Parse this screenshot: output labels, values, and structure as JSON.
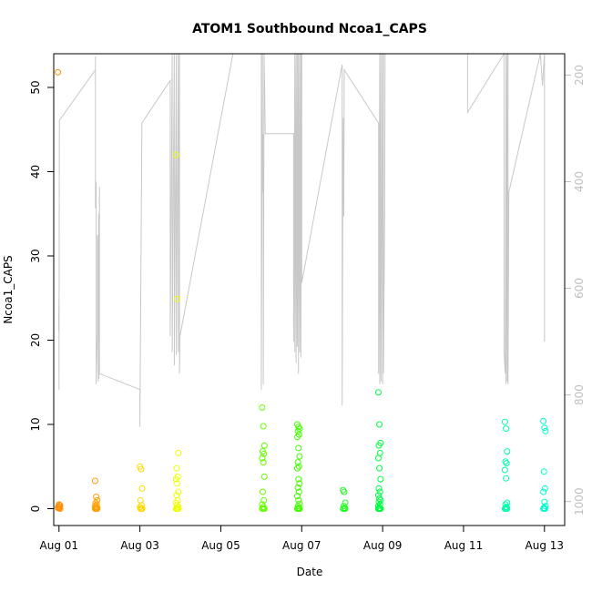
{
  "chart_data": {
    "type": "scatter",
    "title": "ATOM1 Southbound Ncoa1_CAPS",
    "xlabel": "Date",
    "ylabel": "Ncoa1_CAPS",
    "x_ticks": [
      {
        "day": 1,
        "label": "Aug 01"
      },
      {
        "day": 3,
        "label": "Aug 03"
      },
      {
        "day": 5,
        "label": "Aug 05"
      },
      {
        "day": 7,
        "label": "Aug 07"
      },
      {
        "day": 9,
        "label": "Aug 09"
      },
      {
        "day": 11,
        "label": "Aug 11"
      },
      {
        "day": 13,
        "label": "Aug 13"
      }
    ],
    "xlim": [
      0.87,
      13.5
    ],
    "ylim": [
      -2.0,
      54.0
    ],
    "y_ticks": [
      0,
      10,
      20,
      30,
      40,
      50
    ],
    "y2_ticks": [
      200,
      400,
      600,
      800,
      1000
    ],
    "y2lim": [
      1045,
      160
    ],
    "y2_color": "#bfbfbf",
    "depth_color": "#c8c8c8",
    "clusters": [
      {
        "day": 1.0,
        "color": "#ff8c00",
        "values": [
          51.8,
          0.5,
          0.4,
          0.3,
          0.2,
          0.1,
          0.05,
          0.0
        ]
      },
      {
        "day": 1.92,
        "color": "#ffa000",
        "values": [
          3.3,
          1.4,
          1.0,
          0.7,
          0.5,
          0.3,
          0.2,
          0.1,
          0.0,
          0.0,
          0.0,
          0.0,
          0.0,
          0.0
        ]
      },
      {
        "day": 3.03,
        "color": "#ffd800",
        "values": [
          5.0,
          4.7,
          2.4,
          1.0,
          0.4,
          0.2,
          0.0,
          0.0,
          0.0,
          0.0
        ]
      },
      {
        "day": 3.92,
        "color": "#eeff00",
        "values": [
          42.0,
          24.9,
          6.6,
          4.8,
          3.8,
          3.5,
          3.0,
          2.0,
          1.6,
          1.0,
          0.7,
          0.4,
          0.2,
          0.0,
          0.0,
          0.0,
          0.0,
          0.0,
          0.0,
          0.0
        ]
      },
      {
        "day": 6.05,
        "color": "#66ff00",
        "values": [
          12.0,
          9.8,
          7.5,
          6.8,
          6.5,
          6.0,
          5.5,
          3.8,
          2.0,
          1.0,
          0.5,
          0.2,
          0.0,
          0.0,
          0.0,
          0.0
        ]
      },
      {
        "day": 6.92,
        "color": "#44ff00",
        "values": [
          10.0,
          9.7,
          9.5,
          9.2,
          8.8,
          8.5,
          7.2,
          6.2,
          5.5,
          5.0,
          4.8,
          3.5,
          3.0,
          2.5,
          2.0,
          1.5,
          1.0,
          0.6,
          0.3,
          0.1,
          0.0,
          0.0,
          0.0,
          0.0,
          0.0,
          0.0,
          0.0,
          0.0
        ]
      },
      {
        "day": 8.05,
        "color": "#22ff22",
        "values": [
          2.2,
          2.0,
          0.7,
          0.3,
          0.1,
          0.0,
          0.0,
          0.0
        ]
      },
      {
        "day": 8.92,
        "color": "#00ff44",
        "values": [
          13.8,
          10.0,
          7.8,
          7.5,
          6.6,
          6.0,
          4.8,
          3.5,
          2.4,
          2.0,
          1.6,
          1.2,
          1.0,
          0.8,
          0.5,
          0.3,
          0.1,
          0.0,
          0.0,
          0.0,
          0.0,
          0.0,
          0.0,
          0.0
        ]
      },
      {
        "day": 12.05,
        "color": "#00ffaa",
        "values": [
          10.3,
          9.5,
          6.8,
          5.6,
          5.4,
          4.6,
          3.6,
          0.7,
          0.5,
          0.2,
          0.0,
          0.0,
          0.0,
          0.0
        ]
      },
      {
        "day": 13.0,
        "color": "#00ffcc",
        "values": [
          10.4,
          9.6,
          9.2,
          4.4,
          2.4,
          2.0,
          0.8,
          0.3,
          0.1,
          0.0,
          0.0,
          0.0
        ]
      }
    ],
    "depth_path": [
      [
        0.99,
        680
      ],
      [
        1.0,
        620
      ],
      [
        1.0,
        790
      ],
      [
        1.01,
        285
      ],
      [
        1.9,
        190
      ],
      [
        1.9,
        165
      ],
      [
        1.9,
        450
      ],
      [
        1.92,
        400
      ],
      [
        1.92,
        780
      ],
      [
        1.95,
        680
      ],
      [
        1.95,
        500
      ],
      [
        1.97,
        540
      ],
      [
        1.97,
        775
      ],
      [
        1.98,
        460
      ],
      [
        1.99,
        770
      ],
      [
        2.0,
        410
      ],
      [
        2.0,
        760
      ],
      [
        3.0,
        790
      ],
      [
        3.0,
        860
      ],
      [
        3.05,
        290
      ],
      [
        3.75,
        210
      ],
      [
        3.75,
        690
      ],
      [
        3.8,
        160
      ],
      [
        3.8,
        720
      ],
      [
        3.85,
        160
      ],
      [
        3.85,
        745
      ],
      [
        3.9,
        160
      ],
      [
        3.9,
        725
      ],
      [
        3.95,
        160
      ],
      [
        3.95,
        720
      ],
      [
        3.98,
        160
      ],
      [
        3.98,
        760
      ],
      [
        3.99,
        690
      ],
      [
        5.3,
        160
      ],
      [
        6.0,
        160
      ],
      [
        6.0,
        790
      ],
      [
        6.03,
        160
      ],
      [
        6.03,
        420
      ],
      [
        6.05,
        310
      ],
      [
        6.05,
        780
      ],
      [
        6.07,
        160
      ],
      [
        6.1,
        310
      ],
      [
        6.8,
        310
      ],
      [
        6.8,
        700
      ],
      [
        6.83,
        160
      ],
      [
        6.83,
        720
      ],
      [
        6.86,
        160
      ],
      [
        6.86,
        740
      ],
      [
        6.89,
        160
      ],
      [
        6.89,
        710
      ],
      [
        6.92,
        160
      ],
      [
        6.92,
        760
      ],
      [
        6.95,
        160
      ],
      [
        6.95,
        720
      ],
      [
        6.98,
        160
      ],
      [
        6.98,
        730
      ],
      [
        7.0,
        160
      ],
      [
        7.0,
        590
      ],
      [
        8.0,
        180
      ],
      [
        8.0,
        820
      ],
      [
        8.02,
        340
      ],
      [
        8.03,
        280
      ],
      [
        8.04,
        465
      ],
      [
        8.05,
        190
      ],
      [
        8.9,
        290
      ],
      [
        8.9,
        760
      ],
      [
        8.93,
        160
      ],
      [
        8.93,
        780
      ],
      [
        8.96,
        160
      ],
      [
        8.96,
        775
      ],
      [
        9.0,
        160
      ],
      [
        9.0,
        780
      ],
      [
        9.02,
        160
      ],
      [
        9.02,
        760
      ],
      [
        9.05,
        480
      ],
      [
        9.06,
        160
      ],
      [
        11.1,
        160
      ],
      [
        11.1,
        270
      ],
      [
        12.0,
        160
      ],
      [
        12.0,
        720
      ],
      [
        12.03,
        760
      ],
      [
        12.05,
        160
      ],
      [
        12.05,
        780
      ],
      [
        12.08,
        160
      ],
      [
        12.08,
        775
      ],
      [
        12.1,
        160
      ],
      [
        12.1,
        780
      ],
      [
        12.12,
        420
      ],
      [
        12.9,
        160
      ],
      [
        12.95,
        220
      ],
      [
        13.0,
        160
      ],
      [
        13.0,
        700
      ]
    ]
  }
}
